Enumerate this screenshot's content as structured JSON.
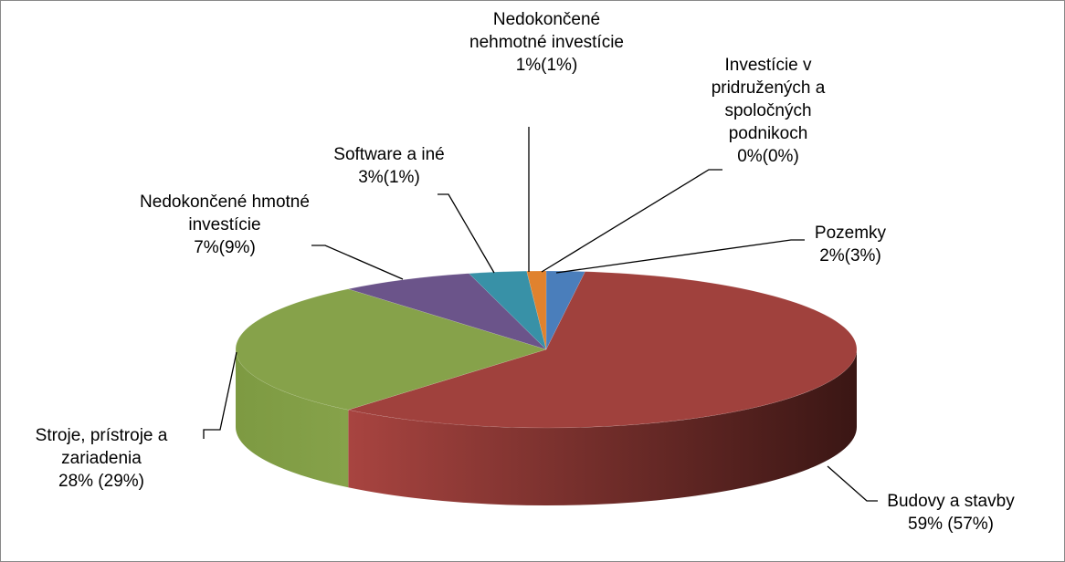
{
  "chart_data": {
    "type": "pie",
    "categories": [
      "Pozemky",
      "Budovy a stavby",
      "Stroje, prístroje a zariadenia",
      "Nedokončené hmotné investície",
      "Software a iné",
      "Nedokončené nehmotné investície",
      "Investície v pridružených a spoločných podnikoch"
    ],
    "values": [
      2,
      59,
      28,
      7,
      3,
      1,
      0
    ],
    "value_labels": [
      "2%(3%)",
      "59% (57%)",
      "28% (29%)",
      "7%(9%)",
      "3%(1%)",
      "1%(1%)",
      "0%(0%)"
    ],
    "colors": [
      "#4a7ebb",
      "#a0413d",
      "#86a24a",
      "#6b548a",
      "#3891a7",
      "#e0822e",
      "#a5b6d6"
    ]
  }
}
